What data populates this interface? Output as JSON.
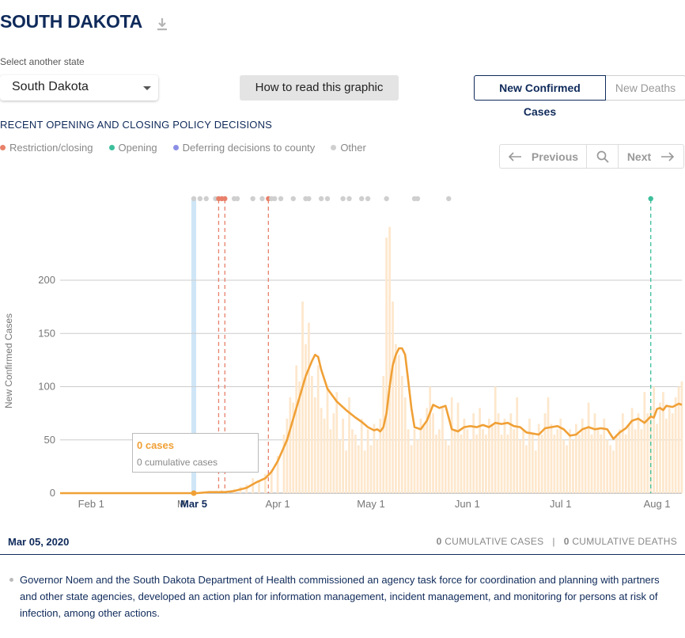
{
  "header": {
    "title": "SOUTH DAKOTA"
  },
  "state_select": {
    "label": "Select another state",
    "value": "South Dakota"
  },
  "how_button": "How to read this graphic",
  "metric_toggle": {
    "active": "New Confirmed Cases",
    "inactive": "New Deaths"
  },
  "policy": {
    "title": "RECENT OPENING AND CLOSING POLICY DECISIONS",
    "legend": [
      {
        "label": "Restriction/closing",
        "color": "#e8806a"
      },
      {
        "label": "Opening",
        "color": "#3dbf9c"
      },
      {
        "label": "Deferring decisions to county",
        "color": "#8b8fe6"
      },
      {
        "label": "Other",
        "color": "#cfcfcf"
      }
    ]
  },
  "pager": {
    "previous": "Previous",
    "next": "Next"
  },
  "tooltip": {
    "cases": "0 cases",
    "cumulative": "0 cumulative cases"
  },
  "footer": {
    "date": "Mar 05, 2020",
    "cumulative_cases_value": "0",
    "cumulative_cases_label": "CUMULATIVE CASES",
    "separator": "|",
    "cumulative_deaths_value": "0",
    "cumulative_deaths_label": "CUMULATIVE DEATHS"
  },
  "note": "Governor Noem and the South Dakota Department of Health commissioned an agency task force for coordination and planning with partners and other state agencies, developed an action plan for information management, incident management, and monitoring for persons at risk of infection, among other actions.",
  "chart_data": {
    "type": "bar",
    "ylabel": "New Confirmed Cases",
    "ylim": [
      0,
      250
    ],
    "yticks": [
      0,
      50,
      100,
      150,
      200
    ],
    "x_tick_labels": [
      "Feb 1",
      "M",
      "Mar 5",
      "Apr 1",
      "May 1",
      "Jun 1",
      "Jul 1",
      "Aug 1"
    ],
    "x_tick_days": [
      32,
      61,
      65,
      92,
      122,
      153,
      183,
      214
    ],
    "x_start_day": 22,
    "x_end_day": 222,
    "selected_day": 65,
    "selected_label": "Mar 5",
    "daily_cases_note": "bars: daily new confirmed cases; line: 7-day average, day index = day of year 2020",
    "line_7day_avg": [
      [
        22,
        0
      ],
      [
        40,
        0
      ],
      [
        60,
        0
      ],
      [
        66,
        0
      ],
      [
        70,
        1
      ],
      [
        75,
        1
      ],
      [
        78,
        2
      ],
      [
        82,
        5
      ],
      [
        85,
        10
      ],
      [
        88,
        14
      ],
      [
        90,
        20
      ],
      [
        92,
        30
      ],
      [
        95,
        50
      ],
      [
        98,
        80
      ],
      [
        101,
        110
      ],
      [
        103,
        124
      ],
      [
        104,
        130
      ],
      [
        105,
        128
      ],
      [
        106,
        116
      ],
      [
        108,
        98
      ],
      [
        111,
        86
      ],
      [
        114,
        78
      ],
      [
        117,
        71
      ],
      [
        119,
        67
      ],
      [
        121,
        62
      ],
      [
        123,
        59
      ],
      [
        124,
        60
      ],
      [
        125,
        58
      ],
      [
        126,
        62
      ],
      [
        127,
        75
      ],
      [
        128,
        100
      ],
      [
        129,
        120
      ],
      [
        130,
        130
      ],
      [
        131,
        136
      ],
      [
        132,
        136
      ],
      [
        133,
        130
      ],
      [
        134,
        105
      ],
      [
        135,
        80
      ],
      [
        136,
        62
      ],
      [
        138,
        60
      ],
      [
        140,
        68
      ],
      [
        142,
        83
      ],
      [
        144,
        80
      ],
      [
        146,
        82
      ],
      [
        148,
        60
      ],
      [
        150,
        58
      ],
      [
        152,
        62
      ],
      [
        154,
        63
      ],
      [
        156,
        62
      ],
      [
        158,
        64
      ],
      [
        160,
        62
      ],
      [
        162,
        66
      ],
      [
        164,
        65
      ],
      [
        166,
        66
      ],
      [
        168,
        63
      ],
      [
        170,
        62
      ],
      [
        172,
        57
      ],
      [
        174,
        56
      ],
      [
        176,
        55
      ],
      [
        178,
        61
      ],
      [
        180,
        62
      ],
      [
        182,
        63
      ],
      [
        184,
        60
      ],
      [
        186,
        54
      ],
      [
        188,
        55
      ],
      [
        190,
        60
      ],
      [
        192,
        62
      ],
      [
        194,
        60
      ],
      [
        196,
        61
      ],
      [
        198,
        60
      ],
      [
        200,
        51
      ],
      [
        202,
        57
      ],
      [
        204,
        61
      ],
      [
        206,
        68
      ],
      [
        208,
        70
      ],
      [
        210,
        66
      ],
      [
        212,
        72
      ],
      [
        213,
        71
      ],
      [
        214,
        79
      ],
      [
        215,
        80
      ],
      [
        216,
        78
      ],
      [
        217,
        82
      ],
      [
        219,
        81
      ],
      [
        221,
        84
      ],
      [
        222,
        83
      ]
    ],
    "daily_bars": [
      [
        70,
        1
      ],
      [
        72,
        2
      ],
      [
        74,
        3
      ],
      [
        76,
        1
      ],
      [
        78,
        4
      ],
      [
        80,
        6
      ],
      [
        82,
        8
      ],
      [
        84,
        14
      ],
      [
        86,
        12
      ],
      [
        88,
        18
      ],
      [
        90,
        22
      ],
      [
        92,
        35
      ],
      [
        94,
        55
      ],
      [
        95,
        70
      ],
      [
        96,
        90
      ],
      [
        97,
        85
      ],
      [
        98,
        120
      ],
      [
        99,
        105
      ],
      [
        100,
        180
      ],
      [
        101,
        140
      ],
      [
        102,
        160
      ],
      [
        103,
        110
      ],
      [
        104,
        90
      ],
      [
        105,
        120
      ],
      [
        106,
        80
      ],
      [
        107,
        70
      ],
      [
        108,
        100
      ],
      [
        109,
        60
      ],
      [
        110,
        75
      ],
      [
        111,
        95
      ],
      [
        112,
        50
      ],
      [
        113,
        70
      ],
      [
        114,
        40
      ],
      [
        115,
        90
      ],
      [
        116,
        60
      ],
      [
        117,
        55
      ],
      [
        118,
        45
      ],
      [
        119,
        70
      ],
      [
        120,
        40
      ],
      [
        121,
        60
      ],
      [
        122,
        45
      ],
      [
        123,
        65
      ],
      [
        124,
        50
      ],
      [
        125,
        70
      ],
      [
        126,
        110
      ],
      [
        127,
        240
      ],
      [
        128,
        250
      ],
      [
        129,
        180
      ],
      [
        130,
        140
      ],
      [
        131,
        130
      ],
      [
        132,
        110
      ],
      [
        133,
        90
      ],
      [
        134,
        60
      ],
      [
        135,
        45
      ],
      [
        136,
        60
      ],
      [
        137,
        50
      ],
      [
        138,
        70
      ],
      [
        139,
        65
      ],
      [
        140,
        80
      ],
      [
        141,
        100
      ],
      [
        142,
        75
      ],
      [
        143,
        55
      ],
      [
        144,
        60
      ],
      [
        145,
        80
      ],
      [
        146,
        50
      ],
      [
        147,
        45
      ],
      [
        148,
        90
      ],
      [
        149,
        60
      ],
      [
        150,
        85
      ],
      [
        151,
        55
      ],
      [
        152,
        70
      ],
      [
        153,
        60
      ],
      [
        154,
        50
      ],
      [
        155,
        75
      ],
      [
        156,
        55
      ],
      [
        157,
        80
      ],
      [
        158,
        60
      ],
      [
        159,
        55
      ],
      [
        160,
        70
      ],
      [
        161,
        65
      ],
      [
        162,
        100
      ],
      [
        163,
        75
      ],
      [
        164,
        55
      ],
      [
        165,
        70
      ],
      [
        166,
        55
      ],
      [
        167,
        75
      ],
      [
        168,
        60
      ],
      [
        169,
        90
      ],
      [
        170,
        50
      ],
      [
        171,
        60
      ],
      [
        172,
        45
      ],
      [
        173,
        70
      ],
      [
        174,
        55
      ],
      [
        175,
        40
      ],
      [
        176,
        65
      ],
      [
        177,
        55
      ],
      [
        178,
        75
      ],
      [
        179,
        90
      ],
      [
        180,
        65
      ],
      [
        181,
        55
      ],
      [
        182,
        60
      ],
      [
        183,
        70
      ],
      [
        184,
        50
      ],
      [
        185,
        45
      ],
      [
        186,
        60
      ],
      [
        187,
        50
      ],
      [
        188,
        65
      ],
      [
        189,
        55
      ],
      [
        190,
        70
      ],
      [
        191,
        60
      ],
      [
        192,
        85
      ],
      [
        193,
        55
      ],
      [
        194,
        75
      ],
      [
        195,
        60
      ],
      [
        196,
        55
      ],
      [
        197,
        70
      ],
      [
        198,
        50
      ],
      [
        199,
        45
      ],
      [
        200,
        40
      ],
      [
        201,
        55
      ],
      [
        202,
        60
      ],
      [
        203,
        75
      ],
      [
        204,
        55
      ],
      [
        205,
        65
      ],
      [
        206,
        80
      ],
      [
        207,
        60
      ],
      [
        208,
        75
      ],
      [
        209,
        60
      ],
      [
        210,
        95
      ],
      [
        211,
        75
      ],
      [
        212,
        80
      ],
      [
        213,
        100
      ],
      [
        214,
        65
      ],
      [
        215,
        85
      ],
      [
        216,
        95
      ],
      [
        217,
        70
      ],
      [
        218,
        80
      ],
      [
        219,
        75
      ],
      [
        220,
        90
      ],
      [
        221,
        100
      ],
      [
        222,
        105
      ]
    ],
    "policy_markers": [
      {
        "day": 65,
        "type": "Other"
      },
      {
        "day": 67,
        "type": "Other"
      },
      {
        "day": 69,
        "type": "Other"
      },
      {
        "day": 72,
        "type": "Other"
      },
      {
        "day": 73,
        "type": "Restriction/closing"
      },
      {
        "day": 74,
        "type": "Restriction/closing"
      },
      {
        "day": 75,
        "type": "Restriction/closing"
      },
      {
        "day": 78,
        "type": "Other"
      },
      {
        "day": 79,
        "type": "Other"
      },
      {
        "day": 84,
        "type": "Other"
      },
      {
        "day": 87,
        "type": "Other"
      },
      {
        "day": 89,
        "type": "Restriction/closing"
      },
      {
        "day": 90,
        "type": "Other"
      },
      {
        "day": 91,
        "type": "Other"
      },
      {
        "day": 93,
        "type": "Other"
      },
      {
        "day": 97,
        "type": "Other"
      },
      {
        "day": 101,
        "type": "Other"
      },
      {
        "day": 102,
        "type": "Other"
      },
      {
        "day": 106,
        "type": "Other"
      },
      {
        "day": 108,
        "type": "Other"
      },
      {
        "day": 113,
        "type": "Other"
      },
      {
        "day": 115,
        "type": "Other"
      },
      {
        "day": 119,
        "type": "Other"
      },
      {
        "day": 121,
        "type": "Other"
      },
      {
        "day": 127,
        "type": "Other"
      },
      {
        "day": 136,
        "type": "Other"
      },
      {
        "day": 137,
        "type": "Other"
      },
      {
        "day": 147,
        "type": "Other"
      },
      {
        "day": 212,
        "type": "Opening"
      }
    ],
    "policy_lines": [
      {
        "day": 73,
        "type": "Restriction/closing"
      },
      {
        "day": 75,
        "type": "Restriction/closing"
      },
      {
        "day": 89,
        "type": "Restriction/closing"
      },
      {
        "day": 212,
        "type": "Opening"
      }
    ],
    "colors": {
      "line": "#f0a036",
      "bars": "#fde7cc",
      "selected": "#cfe6f7",
      "grid": "#cccccc"
    }
  }
}
